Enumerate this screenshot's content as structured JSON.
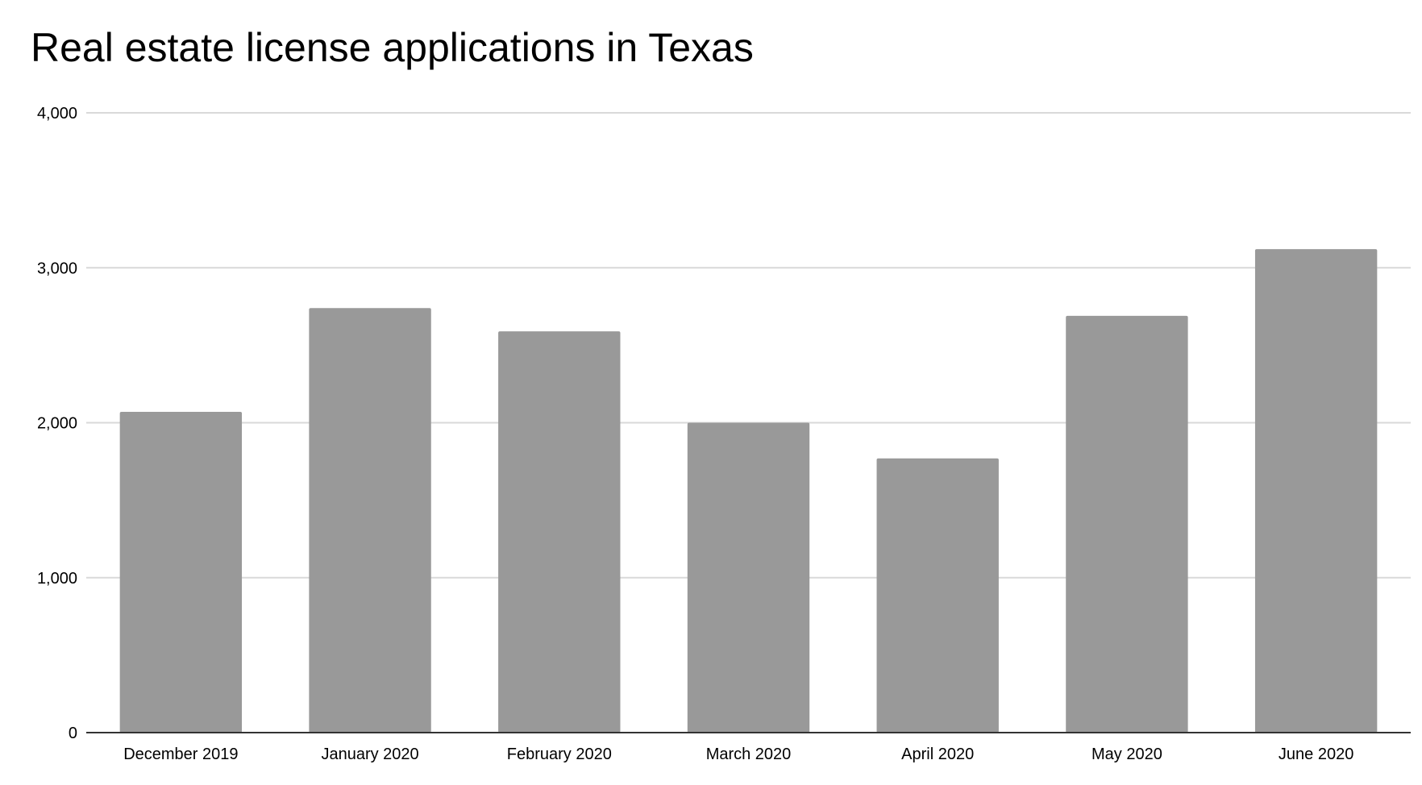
{
  "chart_data": {
    "type": "bar",
    "title": "Real estate license applications in Texas",
    "xlabel": "",
    "ylabel": "",
    "categories": [
      "December 2019",
      "January 2020",
      "February 2020",
      "March 2020",
      "April 2020",
      "May 2020",
      "June 2020"
    ],
    "values": [
      2070,
      2740,
      2590,
      2000,
      1770,
      2690,
      3120
    ],
    "ylim": [
      0,
      4000
    ],
    "yticks": [
      "0",
      "1,000",
      "2,000",
      "3,000",
      "4,000"
    ],
    "grid": true,
    "legend": "none",
    "colors": {
      "bar": "#999999",
      "grid": "#d9d9d9",
      "axis": "#333333",
      "text": "#000000"
    }
  }
}
